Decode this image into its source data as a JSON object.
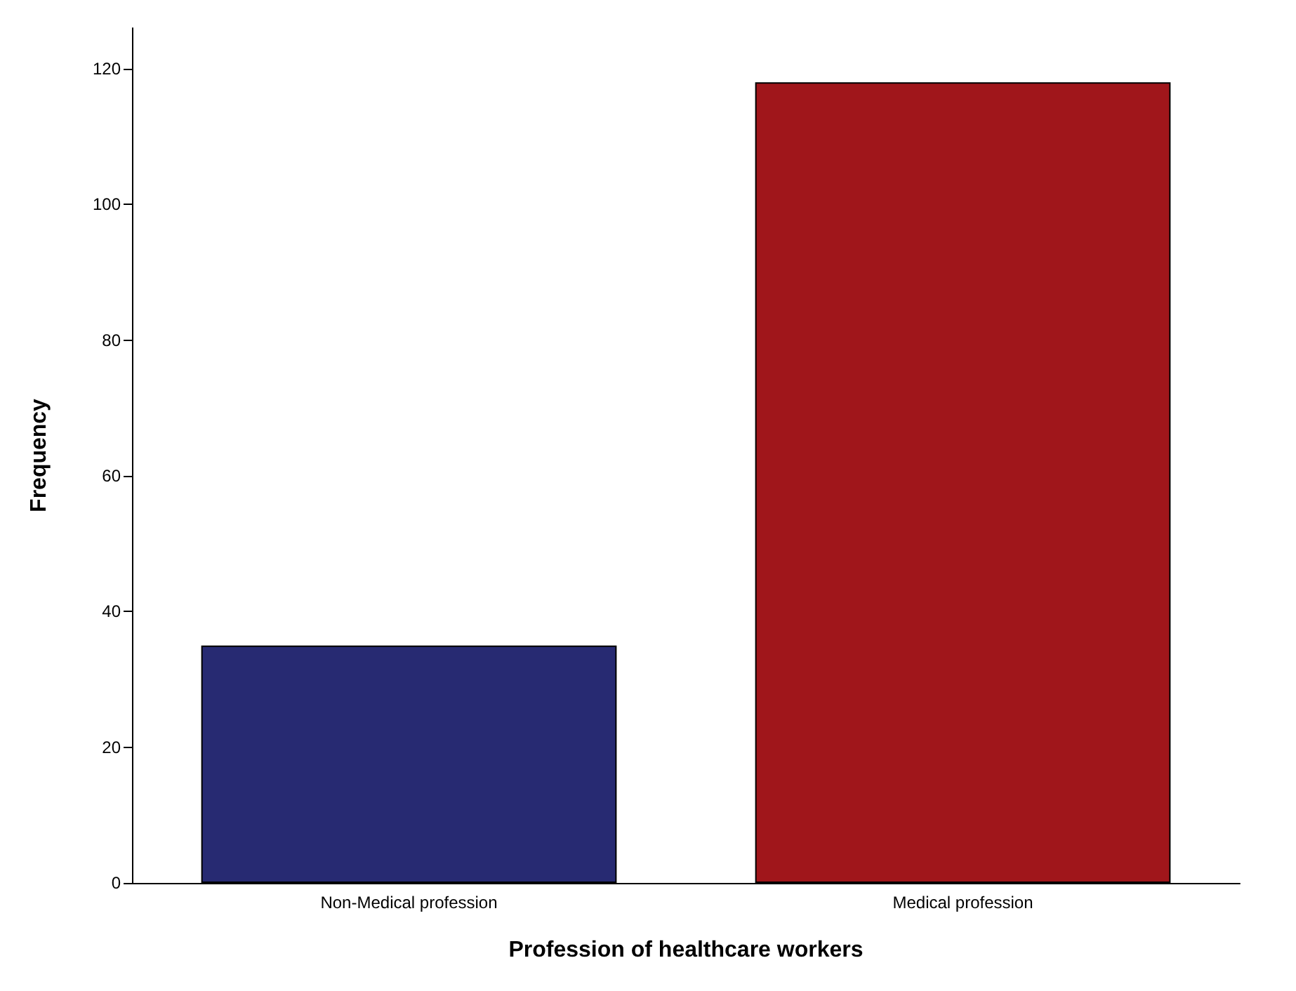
{
  "chart_data": {
    "type": "bar",
    "xlabel": "Profession of healthcare workers",
    "ylabel": "Frequency",
    "categories": [
      "Non-Medical profession",
      "Medical profession"
    ],
    "values": [
      35,
      118
    ],
    "colors": [
      "#272a72",
      "#a0161b"
    ],
    "ylim": [
      0,
      126
    ],
    "yticks": [
      0,
      20,
      40,
      60,
      80,
      100,
      120
    ],
    "grid": false
  }
}
